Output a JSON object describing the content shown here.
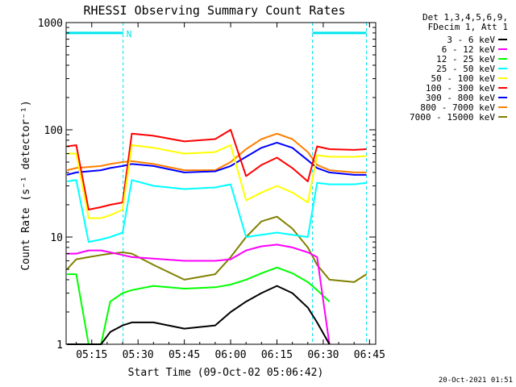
{
  "chart_data": {
    "type": "line",
    "title": "RHESSI Observing Summary Count Rates",
    "xlabel": "Start Time (09-Oct-02 05:06:42)",
    "ylabel": "Count Rate (s⁻¹ detector⁻¹)",
    "y_scale": "log",
    "ylim": [
      1,
      1000
    ],
    "xlim": [
      "05:06:42",
      "06:47:00"
    ],
    "x_ticks": [
      "05:15",
      "05:30",
      "05:45",
      "06:00",
      "06:15",
      "06:30",
      "06:45"
    ],
    "y_ticks": [
      "1",
      "10",
      "100",
      "1000"
    ],
    "legend_header": [
      "Det 1,3,4,5,6,9,",
      "FDecim 1, Att 1"
    ],
    "legend_position": "right",
    "footer_timestamp": "20-Oct-2021 01:51",
    "attenuator_flag": "N",
    "attenuator_bar": {
      "color": "#00e5ee",
      "intervals": [
        [
          "05:06:42",
          "05:25:10"
        ],
        [
          "06:26:30",
          "06:44:00"
        ]
      ],
      "level": 800
    },
    "data_gaps": [
      "05:25:10",
      "06:26:30",
      "06:44:00"
    ],
    "series": [
      {
        "name": "3 - 6 keV",
        "color": "#000000",
        "x": [
          "05:07",
          "05:10",
          "05:14",
          "05:18",
          "05:21",
          "05:25",
          "05:28",
          "05:35",
          "05:45",
          "05:55",
          "06:00",
          "06:05",
          "06:10",
          "06:15",
          "06:20",
          "06:25",
          "06:28",
          "06:32"
        ],
        "y": [
          1,
          1,
          1,
          1,
          1.3,
          1.5,
          1.6,
          1.6,
          1.4,
          1.5,
          2.0,
          2.5,
          3.0,
          3.5,
          3.0,
          2.2,
          1.6,
          1
        ]
      },
      {
        "name": "6 - 12 keV",
        "color": "#ff00ff",
        "x": [
          "05:07",
          "05:10",
          "05:14",
          "05:18",
          "05:21",
          "05:25",
          "05:28",
          "05:35",
          "05:45",
          "05:55",
          "06:00",
          "06:05",
          "06:10",
          "06:15",
          "06:20",
          "06:25",
          "06:28",
          "06:32"
        ],
        "y": [
          7.0,
          7.0,
          7.5,
          7.5,
          7.2,
          6.8,
          6.5,
          6.3,
          6.0,
          6.0,
          6.2,
          7.5,
          8.2,
          8.5,
          8.0,
          7.2,
          6.5,
          1
        ]
      },
      {
        "name": "12 - 25 keV",
        "color": "#00ff00",
        "x": [
          "05:07",
          "05:10",
          "05:14",
          "05:18",
          "05:21",
          "05:25",
          "05:28",
          "05:35",
          "05:45",
          "05:55",
          "06:00",
          "06:05",
          "06:10",
          "06:15",
          "06:20",
          "06:25",
          "06:28",
          "06:32"
        ],
        "y": [
          4.5,
          4.5,
          1,
          1,
          2.5,
          3.0,
          3.2,
          3.5,
          3.3,
          3.4,
          3.6,
          4.0,
          4.6,
          5.2,
          4.6,
          3.8,
          3.2,
          2.5
        ]
      },
      {
        "name": "25 - 50 keV",
        "color": "#00ffff",
        "x": [
          "05:07",
          "05:10",
          "05:14",
          "05:18",
          "05:21",
          "05:25",
          "05:28",
          "05:35",
          "05:45",
          "05:55",
          "06:00",
          "06:05",
          "06:10",
          "06:15",
          "06:20",
          "06:25",
          "06:28",
          "06:32",
          "06:40",
          "06:44"
        ],
        "y": [
          33,
          34,
          9,
          9.5,
          10,
          11,
          34,
          30,
          28,
          29,
          31,
          10,
          10.5,
          11,
          10.5,
          10,
          32,
          31,
          31,
          32
        ]
      },
      {
        "name": "50 - 100 keV",
        "color": "#ffff00",
        "x": [
          "05:07",
          "05:10",
          "05:14",
          "05:18",
          "05:21",
          "05:25",
          "05:28",
          "05:35",
          "05:45",
          "05:55",
          "06:00",
          "06:05",
          "06:10",
          "06:15",
          "06:20",
          "06:25",
          "06:28",
          "06:32",
          "06:40",
          "06:44"
        ],
        "y": [
          60,
          60,
          15,
          15,
          16,
          18,
          72,
          68,
          60,
          62,
          72,
          22,
          26,
          30,
          26,
          21,
          58,
          56,
          56,
          57
        ]
      },
      {
        "name": "100 - 300 keV",
        "color": "#ff0000",
        "x": [
          "05:07",
          "05:10",
          "05:14",
          "05:18",
          "05:21",
          "05:25",
          "05:28",
          "05:35",
          "05:45",
          "05:55",
          "06:00",
          "06:05",
          "06:10",
          "06:15",
          "06:20",
          "06:25",
          "06:28",
          "06:32",
          "06:40",
          "06:44"
        ],
        "y": [
          70,
          72,
          18,
          19,
          20,
          21,
          92,
          88,
          78,
          82,
          100,
          37,
          47,
          55,
          44,
          33,
          70,
          66,
          65,
          66
        ]
      },
      {
        "name": "300 - 800 keV",
        "color": "#0000ff",
        "x": [
          "05:07",
          "05:10",
          "05:14",
          "05:18",
          "05:21",
          "05:25",
          "05:28",
          "05:35",
          "05:45",
          "05:55",
          "06:00",
          "06:05",
          "06:10",
          "06:15",
          "06:20",
          "06:25",
          "06:28",
          "06:32",
          "06:40",
          "06:44"
        ],
        "y": [
          38,
          40,
          41,
          42,
          44,
          46,
          48,
          46,
          40,
          41,
          46,
          56,
          68,
          76,
          68,
          52,
          44,
          40,
          38,
          38
        ]
      },
      {
        "name": "800 - 7000 keV",
        "color": "#ff8000",
        "x": [
          "05:07",
          "05:10",
          "05:14",
          "05:18",
          "05:21",
          "05:25",
          "05:28",
          "05:35",
          "05:45",
          "05:55",
          "06:00",
          "06:05",
          "06:10",
          "06:15",
          "06:20",
          "06:25",
          "06:28",
          "06:32",
          "06:40",
          "06:44"
        ],
        "y": [
          42,
          44,
          45,
          46,
          48,
          50,
          51,
          48,
          42,
          42,
          50,
          66,
          82,
          92,
          82,
          62,
          47,
          42,
          40,
          40
        ]
      },
      {
        "name": "7000 - 15000 keV",
        "color": "#808000",
        "x": [
          "05:07",
          "05:10",
          "05:14",
          "05:18",
          "05:21",
          "05:25",
          "05:28",
          "05:35",
          "05:45",
          "05:55",
          "06:00",
          "06:05",
          "06:10",
          "06:15",
          "06:20",
          "06:25",
          "06:28",
          "06:32",
          "06:40",
          "06:44"
        ],
        "y": [
          5.0,
          6.2,
          6.5,
          6.8,
          7.0,
          7.2,
          7.0,
          5.5,
          4.0,
          4.5,
          6.5,
          10,
          14,
          15.5,
          12,
          8,
          5.5,
          4.0,
          3.8,
          4.5
        ]
      }
    ]
  }
}
